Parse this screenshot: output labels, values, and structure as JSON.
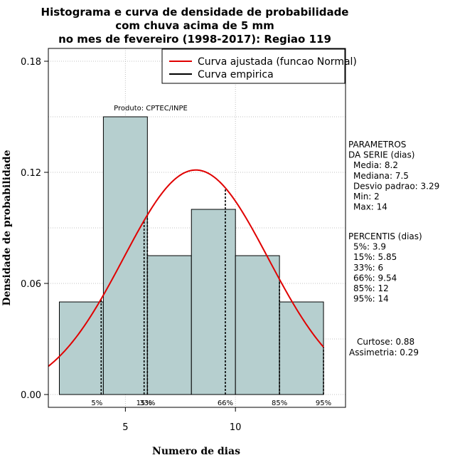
{
  "chart_data": {
    "type": "bar",
    "title_lines": [
      "Histograma e curva de densidade de probabilidade",
      "com chuva acima de 5 mm",
      "no mes de fevereiro (1998-2017): Regiao 119"
    ],
    "xlabel": "Numero de dias",
    "ylabel": "Densidade de probabilidade",
    "xlim": [
      1.5,
      15.0
    ],
    "ylim": [
      0,
      0.18
    ],
    "xticks": [
      5,
      10
    ],
    "yticks": [
      "0.00",
      "0.06",
      "0.12",
      "0.18"
    ],
    "bins": [
      {
        "start": 2,
        "end": 4,
        "density": 0.05
      },
      {
        "start": 4,
        "end": 6,
        "density": 0.15
      },
      {
        "start": 6,
        "end": 8,
        "density": 0.075
      },
      {
        "start": 8,
        "end": 10,
        "density": 0.1
      },
      {
        "start": 10,
        "end": 12,
        "density": 0.075
      },
      {
        "start": 12,
        "end": 14,
        "density": 0.05
      }
    ],
    "normal_curve": {
      "mean": 8.2,
      "sd": 3.29
    },
    "percentiles": [
      {
        "label": "5%",
        "x": 3.9
      },
      {
        "label": "15%",
        "x": 5.85
      },
      {
        "label": "33%",
        "x": 6
      },
      {
        "label": "66%",
        "x": 9.54
      },
      {
        "label": "85%",
        "x": 12
      },
      {
        "label": "95%",
        "x": 14
      }
    ],
    "legend": [
      {
        "label": "Curva ajustada (funcao Normal)",
        "color": "#e00000"
      },
      {
        "label": "Curva empirica",
        "color": "#000000"
      }
    ],
    "annotation": "Produto: CPTEC/INPE",
    "colors": {
      "bar_fill": "#b6cfcf",
      "curve": "#e00000",
      "grid": "#c0c0c0"
    }
  },
  "side_panel": {
    "params_lines": [
      "PARAMETROS",
      "DA SERIE (dias)",
      "Media: 8.2",
      "Mediana: 7.5",
      "Desvio padrao: 3.29",
      "Min: 2",
      "Max: 14"
    ],
    "percentis_lines": [
      "PERCENTIS (dias)",
      "5%: 3.9",
      "15%: 5.85",
      "33%: 6",
      "66%: 9.54",
      "85%: 12",
      "95%: 14"
    ],
    "stats_lines": [
      "Curtose: 0.88",
      "Assimetria: 0.29"
    ]
  }
}
